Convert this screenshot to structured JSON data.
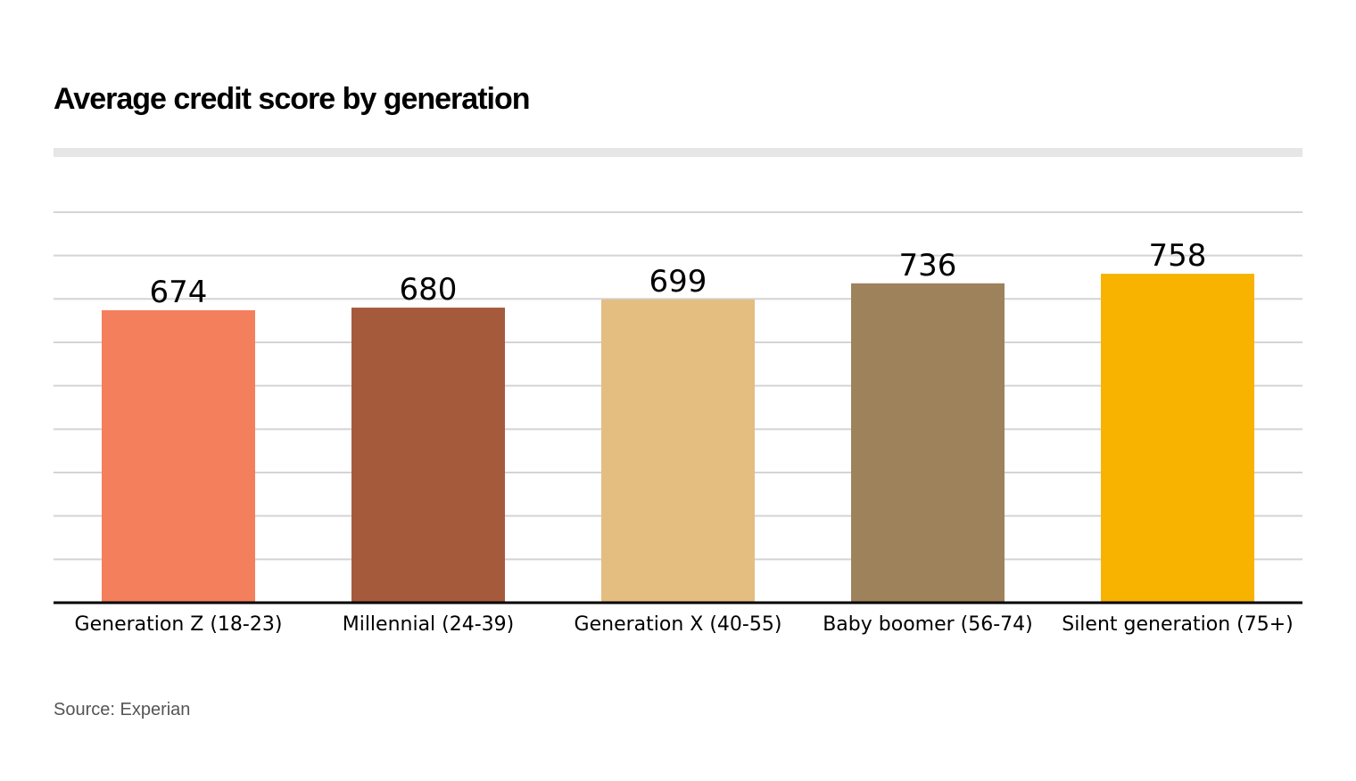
{
  "chart_data": {
    "type": "bar",
    "title": "Average credit score by generation",
    "categories": [
      "Generation Z (18-23)",
      "Millennial (24-39)",
      "Generation X (40-55)",
      "Baby boomer (56-74)",
      "Silent generation (75+)"
    ],
    "values": [
      674,
      680,
      699,
      736,
      758
    ],
    "bar_colors": [
      "#f47f5c",
      "#a65a3c",
      "#e4be81",
      "#9e825b",
      "#f8b200"
    ],
    "data_labels": [
      "674",
      "680",
      "699",
      "736",
      "758"
    ],
    "xlabel": "",
    "ylabel": "",
    "ylim": [
      0,
      900
    ],
    "y_gridlines": 9,
    "y_tick_labels_shown": false,
    "grid": true,
    "legend": "none"
  },
  "source": "Source: Experian",
  "colors": {
    "gridline": "#d4d4d4",
    "baseline": "#000000",
    "title_rule": "#e6e6e6",
    "text": "#000000",
    "source_text": "#555555"
  }
}
